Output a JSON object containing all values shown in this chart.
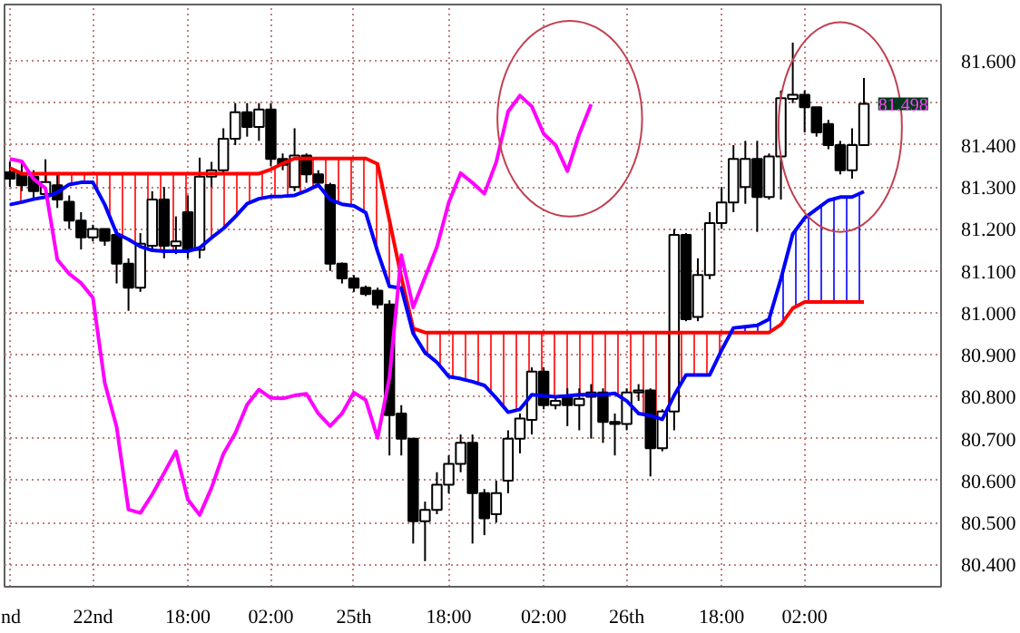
{
  "chart_data": {
    "type": "candlestick",
    "categories": [
      "nd",
      null,
      null,
      null,
      null,
      null,
      null,
      "22nd",
      null,
      null,
      null,
      null,
      null,
      null,
      null,
      "18:00",
      null,
      null,
      null,
      null,
      null,
      null,
      "02:00",
      null,
      null,
      null,
      null,
      null,
      null,
      "25th",
      null,
      null,
      null,
      null,
      null,
      null,
      null,
      "18:00",
      null,
      null,
      null,
      null,
      null,
      null,
      null,
      "02:00",
      null,
      null,
      null,
      null,
      null,
      null,
      "26th",
      null,
      null,
      null,
      null,
      null,
      null,
      null,
      "18:00",
      null,
      null,
      null,
      null,
      null,
      null,
      "02:00",
      null,
      null,
      null,
      null,
      null
    ],
    "ohlc": [
      [
        81.335,
        81.36,
        81.3,
        81.32
      ],
      [
        81.332,
        81.36,
        81.29,
        81.304
      ],
      [
        81.325,
        81.34,
        81.27,
        81.29
      ],
      [
        81.283,
        81.366,
        81.276,
        81.312
      ],
      [
        81.304,
        81.33,
        81.25,
        81.27
      ],
      [
        81.265,
        81.28,
        81.2,
        81.22
      ],
      [
        81.22,
        81.24,
        81.151,
        81.18
      ],
      [
        81.18,
        81.21,
        81.17,
        81.2
      ],
      [
        81.2,
        81.2,
        81.16,
        81.172
      ],
      [
        81.186,
        81.2,
        81.07,
        81.117
      ],
      [
        81.117,
        81.13,
        81.005,
        81.06
      ],
      [
        81.06,
        81.19,
        81.05,
        81.165
      ],
      [
        81.16,
        81.29,
        81.15,
        81.27
      ],
      [
        81.27,
        81.3,
        81.13,
        81.16
      ],
      [
        81.16,
        81.23,
        81.14,
        81.17
      ],
      [
        81.24,
        81.28,
        81.13,
        81.15
      ],
      [
        81.15,
        81.37,
        81.13,
        81.325
      ],
      [
        81.325,
        81.36,
        81.3,
        81.34
      ],
      [
        81.34,
        81.44,
        81.33,
        81.415
      ],
      [
        81.415,
        81.5,
        81.4,
        81.478
      ],
      [
        81.478,
        81.5,
        81.42,
        81.443
      ],
      [
        81.443,
        81.5,
        81.41,
        81.485
      ],
      [
        81.485,
        81.5,
        81.35,
        81.367
      ],
      [
        81.367,
        81.38,
        81.34,
        81.353
      ],
      [
        81.3,
        81.44,
        81.29,
        81.375
      ],
      [
        81.375,
        81.38,
        81.31,
        81.33
      ],
      [
        81.33,
        81.34,
        81.3,
        81.31
      ],
      [
        81.305,
        81.31,
        81.1,
        81.117
      ],
      [
        81.117,
        81.12,
        81.07,
        81.082
      ],
      [
        81.082,
        81.09,
        81.05,
        81.06
      ],
      [
        81.06,
        81.065,
        81.04,
        81.045
      ],
      [
        81.053,
        81.06,
        81.01,
        81.02
      ],
      [
        81.02,
        81.03,
        80.66,
        80.756
      ],
      [
        80.76,
        80.78,
        80.66,
        80.7
      ],
      [
        80.7,
        80.7,
        80.45,
        80.503
      ],
      [
        80.503,
        80.55,
        80.408,
        80.53
      ],
      [
        80.53,
        80.62,
        80.52,
        80.59
      ],
      [
        80.59,
        80.66,
        80.57,
        80.64
      ],
      [
        80.64,
        80.71,
        80.62,
        80.69
      ],
      [
        80.69,
        80.71,
        80.45,
        80.57
      ],
      [
        80.57,
        80.58,
        80.47,
        80.51
      ],
      [
        80.52,
        80.6,
        80.5,
        80.57
      ],
      [
        80.6,
        80.72,
        80.57,
        80.7
      ],
      [
        80.7,
        80.76,
        80.665,
        80.748
      ],
      [
        80.745,
        80.87,
        80.71,
        80.86
      ],
      [
        80.86,
        80.87,
        80.77,
        80.78
      ],
      [
        80.78,
        80.8,
        80.77,
        80.79
      ],
      [
        80.8,
        80.82,
        80.73,
        80.78
      ],
      [
        80.78,
        80.82,
        80.72,
        80.795
      ],
      [
        80.8,
        80.83,
        80.7,
        80.81
      ],
      [
        80.81,
        80.82,
        80.69,
        80.74
      ],
      [
        80.74,
        80.76,
        80.66,
        80.735
      ],
      [
        80.735,
        80.82,
        80.72,
        80.81
      ],
      [
        80.81,
        80.83,
        80.79,
        80.815
      ],
      [
        80.815,
        80.82,
        80.61,
        80.677
      ],
      [
        80.677,
        80.77,
        80.67,
        80.765
      ],
      [
        80.765,
        81.2,
        80.72,
        81.186
      ],
      [
        81.186,
        81.19,
        80.98,
        80.985
      ],
      [
        80.99,
        81.13,
        80.98,
        81.09
      ],
      [
        81.09,
        81.24,
        81.08,
        81.214
      ],
      [
        81.214,
        81.3,
        81.2,
        81.263
      ],
      [
        81.263,
        81.4,
        81.24,
        81.367
      ],
      [
        81.3,
        81.41,
        81.26,
        81.367
      ],
      [
        81.367,
        81.41,
        81.193,
        81.276
      ],
      [
        81.276,
        81.38,
        81.27,
        81.373
      ],
      [
        81.373,
        81.53,
        81.27,
        81.512
      ],
      [
        81.51,
        81.644,
        81.5,
        81.52
      ],
      [
        81.52,
        81.53,
        81.43,
        81.49
      ],
      [
        81.49,
        81.49,
        81.42,
        81.43
      ],
      [
        81.45,
        81.46,
        81.39,
        81.4
      ],
      [
        81.4,
        81.41,
        81.33,
        81.34
      ],
      [
        81.34,
        81.44,
        81.32,
        81.4
      ],
      [
        81.4,
        81.56,
        81.4,
        81.498
      ]
    ],
    "color": "#000000",
    "series": [
      {
        "type": "line",
        "color": "#ff0000",
        "lower": [
          81.258,
          81.264,
          81.271,
          81.276,
          81.287,
          81.306,
          81.311,
          81.311,
          81.258,
          81.189,
          81.175,
          81.158,
          81.149,
          81.147,
          81.147,
          81.147,
          81.155,
          81.179,
          81.201,
          81.229,
          81.26,
          81.272,
          81.277,
          81.278,
          81.28,
          81.291,
          81.305,
          81.27,
          81.259,
          81.255,
          81.239,
          81.146,
          81.063,
          81.059,
          80.951,
          80.905,
          80.882,
          80.848,
          80.843,
          80.836,
          80.827,
          80.797,
          80.763,
          80.77,
          80.805,
          80.802,
          80.8,
          80.802,
          80.805,
          80.805,
          80.805,
          80.808,
          80.79,
          80.76,
          80.755,
          80.746,
          80.803,
          80.852,
          80.852,
          80.852,
          80.911,
          null,
          null,
          null,
          null,
          null,
          null,
          null,
          null,
          null,
          null,
          null,
          null
        ],
        "upper": [
          81.345,
          81.332,
          81.332,
          81.332,
          81.332,
          81.332,
          81.332,
          81.332,
          81.332,
          81.332,
          81.332,
          81.332,
          81.332,
          81.332,
          81.332,
          81.332,
          81.332,
          81.332,
          81.332,
          81.332,
          81.332,
          81.332,
          81.342,
          81.356,
          81.368,
          81.368,
          81.368,
          81.368,
          81.368,
          81.368,
          81.368,
          81.355,
          81.22,
          81.085,
          80.963,
          80.953,
          80.953,
          80.953,
          80.953,
          80.953,
          80.953,
          80.953,
          80.953,
          80.953,
          80.953,
          80.953,
          80.953,
          80.953,
          80.953,
          80.953,
          80.953,
          80.953,
          80.953,
          80.953,
          80.953,
          80.953,
          80.953,
          80.953,
          80.953,
          80.953,
          80.953,
          null,
          null,
          null,
          null,
          null,
          null,
          null,
          null,
          null,
          null,
          null,
          null
        ],
        "values": [
          81.345,
          81.332,
          81.332,
          81.332,
          81.332,
          81.332,
          81.332,
          81.332,
          81.332,
          81.332,
          81.332,
          81.332,
          81.332,
          81.332,
          81.332,
          81.332,
          81.332,
          81.332,
          81.332,
          81.332,
          81.332,
          81.332,
          81.342,
          81.356,
          81.368,
          81.368,
          81.368,
          81.368,
          81.368,
          81.368,
          81.368,
          81.355,
          81.22,
          81.085,
          80.963,
          80.953,
          80.953,
          80.953,
          80.953,
          80.953,
          80.953,
          80.953,
          80.953,
          80.953,
          80.953,
          80.953,
          80.953,
          80.953,
          80.953,
          80.953,
          80.953,
          80.953,
          80.953,
          80.953,
          80.953,
          80.953,
          80.953,
          80.953,
          80.953,
          80.953,
          80.953,
          80.953,
          80.953,
          80.953,
          80.953,
          80.972,
          81.011,
          81.026,
          81.026,
          81.026,
          81.026,
          81.026,
          81.026
        ]
      },
      {
        "type": "line",
        "color": "#0000ff",
        "lower": [
          null,
          null,
          null,
          null,
          null,
          null,
          null,
          null,
          null,
          null,
          null,
          null,
          null,
          null,
          null,
          null,
          null,
          null,
          null,
          null,
          null,
          null,
          null,
          null,
          null,
          null,
          null,
          null,
          null,
          null,
          null,
          null,
          null,
          null,
          null,
          null,
          null,
          null,
          null,
          null,
          null,
          null,
          null,
          null,
          null,
          null,
          null,
          null,
          null,
          null,
          null,
          null,
          null,
          null,
          null,
          null,
          null,
          null,
          null,
          null,
          null,
          80.953,
          80.953,
          80.953,
          80.953,
          80.972,
          81.011,
          81.026,
          81.026,
          81.026,
          81.026,
          81.026,
          81.026
        ],
        "upper": [
          null,
          null,
          null,
          null,
          null,
          null,
          null,
          null,
          null,
          null,
          null,
          null,
          null,
          null,
          null,
          null,
          null,
          null,
          null,
          null,
          null,
          null,
          null,
          null,
          null,
          null,
          null,
          null,
          null,
          null,
          null,
          null,
          null,
          null,
          null,
          null,
          null,
          null,
          null,
          null,
          null,
          null,
          null,
          null,
          null,
          null,
          null,
          null,
          null,
          null,
          null,
          null,
          null,
          null,
          null,
          null,
          null,
          null,
          null,
          null,
          null,
          80.964,
          80.967,
          80.97,
          80.985,
          81.081,
          81.188,
          81.226,
          81.247,
          81.268,
          81.276,
          81.276,
          81.289
        ],
        "values": [
          81.258,
          81.264,
          81.271,
          81.276,
          81.287,
          81.306,
          81.311,
          81.311,
          81.258,
          81.189,
          81.175,
          81.158,
          81.149,
          81.147,
          81.147,
          81.147,
          81.155,
          81.179,
          81.201,
          81.229,
          81.26,
          81.272,
          81.277,
          81.278,
          81.28,
          81.291,
          81.305,
          81.27,
          81.259,
          81.255,
          81.239,
          81.146,
          81.063,
          81.059,
          80.951,
          80.905,
          80.882,
          80.848,
          80.843,
          80.836,
          80.827,
          80.797,
          80.763,
          80.77,
          80.805,
          80.802,
          80.8,
          80.802,
          80.805,
          80.805,
          80.805,
          80.808,
          80.79,
          80.76,
          80.755,
          80.746,
          80.803,
          80.852,
          80.852,
          80.852,
          80.911,
          80.964,
          80.967,
          80.97,
          80.985,
          81.081,
          81.188,
          81.226,
          81.247,
          81.268,
          81.276,
          81.276,
          81.289
        ]
      },
      {
        "type": "line",
        "color": "#ff00ff",
        "values": [
          81.367,
          81.361,
          81.319,
          81.297,
          81.127,
          81.093,
          81.071,
          81.036,
          80.833,
          80.728,
          80.531,
          80.523,
          80.567,
          80.618,
          80.67,
          80.555,
          80.518,
          80.583,
          80.664,
          80.713,
          80.781,
          80.817,
          80.797,
          80.796,
          80.803,
          80.807,
          80.76,
          80.73,
          80.76,
          80.81,
          80.792,
          80.702,
          80.846,
          81.138,
          81.013,
          81.085,
          81.157,
          81.263,
          81.333,
          81.31,
          81.284,
          81.359,
          81.48,
          81.518,
          81.492,
          81.427,
          81.4,
          81.338,
          81.426,
          81.497,
          null,
          null,
          null,
          null,
          null,
          null,
          null,
          null,
          null,
          null,
          null,
          null,
          null,
          null,
          null,
          null,
          null,
          null,
          null,
          null,
          null,
          null,
          null
        ]
      }
    ],
    "ylim": [
      80.347,
      81.735
    ],
    "yticks": [
      {
        "value": 80.4,
        "label": "80.400"
      },
      {
        "value": 80.5,
        "label": "80.500"
      },
      {
        "value": 80.6,
        "label": "80.600"
      },
      {
        "value": 80.7,
        "label": "80.700"
      },
      {
        "value": 80.8,
        "label": "80.800"
      },
      {
        "value": 80.9,
        "label": "80.900"
      },
      {
        "value": 81.0,
        "label": "81.000"
      },
      {
        "value": 81.1,
        "label": "81.100"
      },
      {
        "value": 81.2,
        "label": "81.200"
      },
      {
        "value": 81.3,
        "label": "81.300"
      },
      {
        "value": 81.4,
        "label": "81.400"
      },
      {
        "value": 81.5,
        "label": null
      },
      {
        "value": 81.6,
        "label": "81.600"
      }
    ],
    "annotations": [
      "81.498"
    ],
    "grid": true
  }
}
